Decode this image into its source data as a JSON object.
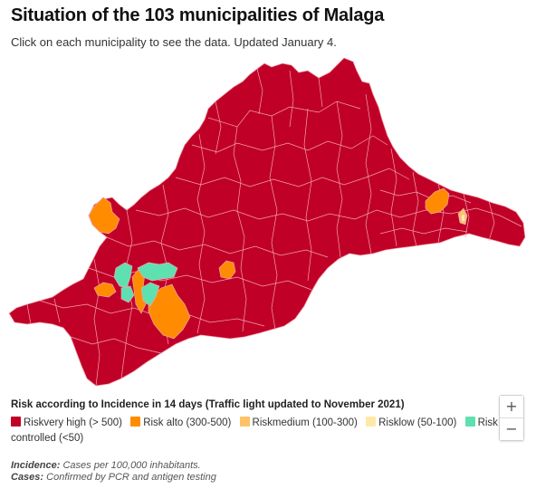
{
  "title": "Situation of the 103 municipalities of Malaga",
  "subtitle": "Click on each municipality to see the data. Updated January 4.",
  "map": {
    "colors": {
      "very_high": "#c00027",
      "high": "#ff8c00",
      "medium": "#ffb84d",
      "low": "#ffe9a8",
      "controlled": "#5fe0b0",
      "border": "#f2a3ad"
    }
  },
  "zoom": {
    "in_label": "+",
    "out_label": "−"
  },
  "legend": {
    "title": "Risk according to Incidence in 14 days (Traffic light updated to November 2021)",
    "items": [
      {
        "label": "Riskvery high (> 500)",
        "color": "#c00027"
      },
      {
        "label": "Risk alto (300-500)",
        "color": "#ff8c00"
      },
      {
        "label": "Riskmedium (100-300)",
        "color": "#ffc266"
      },
      {
        "label": "Risklow (50-100)",
        "color": "#ffe9a8"
      },
      {
        "label": "Risk controlled (<50)",
        "color": "#5fe0b0"
      }
    ]
  },
  "notes": {
    "incidence_label": "Incidence:",
    "incidence_text": "Cases per 100,000 inhabitants.",
    "cases_label": "Cases:",
    "cases_text": "Confirmed by PCR and antigen testing"
  }
}
